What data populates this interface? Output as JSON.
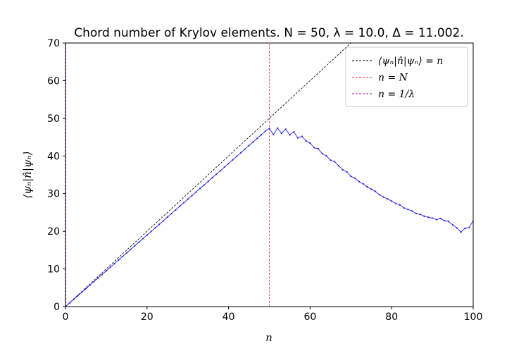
{
  "chart_data": {
    "type": "line",
    "title": "Chord number of Krylov elements. N = 50, λ = 10.0, Δ = 11.002.",
    "xlabel": "n",
    "ylabel": "⟨ψₙ|n̂|ψₙ⟩",
    "xlim": [
      0,
      100
    ],
    "ylim": [
      0,
      70
    ],
    "xticks": [
      0,
      20,
      40,
      60,
      80,
      100
    ],
    "yticks": [
      0,
      10,
      20,
      30,
      40,
      50,
      60,
      70
    ],
    "grid": false,
    "legend_position": "top-right",
    "series": [
      {
        "name": "⟨ψₙ|n̂|ψₙ⟩ = n",
        "style": "dashed",
        "color": "#000000",
        "x": [
          0,
          70
        ],
        "y": [
          0,
          70
        ]
      },
      {
        "name": "n = N",
        "style": "dashed-vertical",
        "color": "#e8323c",
        "x": [
          50,
          50
        ],
        "y": [
          0,
          70
        ]
      },
      {
        "name": "n = 1/λ",
        "style": "dashed-vertical",
        "color": "#9b1fa6",
        "x": [
          0.1,
          0.1
        ],
        "y": [
          0,
          70
        ]
      },
      {
        "name": "",
        "style": "solid-markers",
        "color": "#1f1fe6",
        "x": [
          0,
          1,
          2,
          3,
          4,
          5,
          6,
          7,
          8,
          9,
          10,
          11,
          12,
          13,
          14,
          15,
          16,
          17,
          18,
          19,
          20,
          21,
          22,
          23,
          24,
          25,
          26,
          27,
          28,
          29,
          30,
          31,
          32,
          33,
          34,
          35,
          36,
          37,
          38,
          39,
          40,
          41,
          42,
          43,
          44,
          45,
          46,
          47,
          48,
          49,
          50,
          51,
          52,
          53,
          54,
          55,
          56,
          57,
          58,
          59,
          60,
          61,
          62,
          63,
          64,
          65,
          66,
          67,
          68,
          69,
          70,
          71,
          72,
          73,
          74,
          75,
          76,
          77,
          78,
          79,
          80,
          81,
          82,
          83,
          84,
          85,
          86,
          87,
          88,
          89,
          90,
          91,
          92,
          93,
          94,
          95,
          96,
          97,
          98,
          99,
          100
        ],
        "y": [
          0,
          0.95,
          1.9,
          2.85,
          3.8,
          4.75,
          5.7,
          6.65,
          7.6,
          8.55,
          9.5,
          10.45,
          11.4,
          12.35,
          13.3,
          14.25,
          15.2,
          16.15,
          17.1,
          18.05,
          19.0,
          19.95,
          20.9,
          21.85,
          22.8,
          23.75,
          24.7,
          25.65,
          26.6,
          27.55,
          28.5,
          29.45,
          30.4,
          31.35,
          32.3,
          33.25,
          34.2,
          35.15,
          36.1,
          37.05,
          38.0,
          38.95,
          39.9,
          40.85,
          41.8,
          42.75,
          43.7,
          44.65,
          45.6,
          46.55,
          47.3,
          45.7,
          47.4,
          46.0,
          47.1,
          45.6,
          46.4,
          44.8,
          45.2,
          44.0,
          43.4,
          42.2,
          41.9,
          40.6,
          40.0,
          38.9,
          38.5,
          37.4,
          36.3,
          35.8,
          34.6,
          34.1,
          33.2,
          32.6,
          31.8,
          31.2,
          30.6,
          29.7,
          29.1,
          28.6,
          28.0,
          27.4,
          27.0,
          26.2,
          25.8,
          25.4,
          24.7,
          24.5,
          24.0,
          23.7,
          23.5,
          23.1,
          23.4,
          22.8,
          22.6,
          21.7,
          20.9,
          19.8,
          20.8,
          21.0,
          22.8
        ]
      }
    ]
  }
}
